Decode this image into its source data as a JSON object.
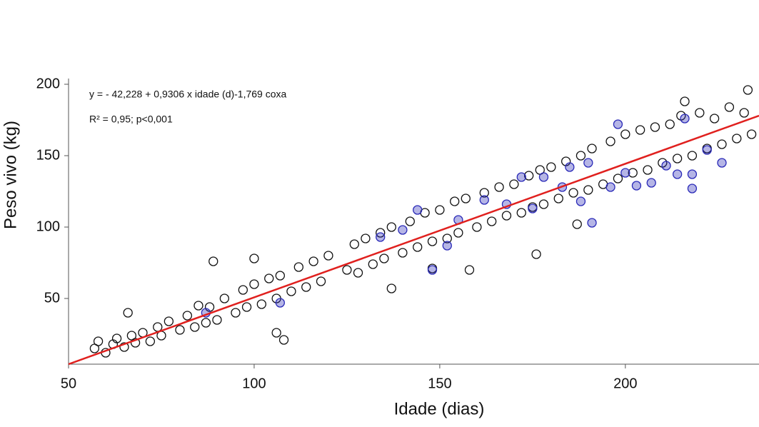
{
  "chart_data": {
    "type": "scatter",
    "annotations": [
      "y = - 42,228 + 0,9306 x idade (d)-1,769 coxa",
      "R² = 0,95; p<0,001"
    ],
    "x_label": "Idade (dias)",
    "y_label": "Peso vivo (kg)",
    "xlim": [
      50,
      236
    ],
    "ylim": [
      4,
      203
    ],
    "xticks": [
      50,
      100,
      150,
      200
    ],
    "yticks": [
      50,
      100,
      150,
      200
    ],
    "series": [
      {
        "color": "#111111",
        "x": [
          57,
          58,
          60,
          62,
          63,
          65,
          67,
          68,
          70,
          72,
          74,
          75,
          77,
          80,
          82,
          84,
          85,
          87,
          88,
          90,
          92,
          95,
          97,
          98,
          100,
          102,
          104,
          106,
          107,
          110,
          112,
          114,
          116,
          118,
          120,
          125,
          127,
          128,
          130,
          132,
          134,
          135,
          137,
          140,
          142,
          144,
          146,
          148,
          150,
          152,
          154,
          155,
          157,
          160,
          162,
          164,
          166,
          168,
          170,
          172,
          174,
          175,
          177,
          178,
          180,
          182,
          184,
          186,
          188,
          190,
          191,
          194,
          196,
          198,
          200,
          202,
          204,
          206,
          208,
          210,
          212,
          214,
          215,
          218,
          220,
          222,
          224,
          226,
          228,
          230,
          232,
          234,
          66,
          89,
          100,
          106,
          108,
          137,
          148,
          158,
          176,
          187,
          233,
          216
        ],
        "values": [
          15,
          20,
          12,
          18,
          22,
          16,
          24,
          19,
          26,
          20,
          30,
          24,
          34,
          28,
          38,
          30,
          45,
          33,
          44,
          35,
          50,
          40,
          56,
          44,
          60,
          46,
          64,
          50,
          66,
          55,
          72,
          58,
          76,
          62,
          80,
          70,
          88,
          68,
          92,
          74,
          96,
          78,
          100,
          82,
          104,
          86,
          110,
          90,
          112,
          92,
          118,
          96,
          120,
          100,
          124,
          104,
          128,
          108,
          130,
          110,
          136,
          114,
          140,
          116,
          142,
          120,
          146,
          124,
          150,
          126,
          155,
          130,
          160,
          134,
          165,
          138,
          168,
          140,
          170,
          145,
          172,
          148,
          178,
          150,
          180,
          155,
          176,
          158,
          184,
          162,
          180,
          165,
          40,
          76,
          78,
          26,
          21,
          57,
          71,
          70,
          81,
          102,
          196,
          188
        ]
      },
      {
        "color": "#2a2ab8",
        "x": [
          87,
          107,
          134,
          140,
          144,
          148,
          152,
          155,
          162,
          168,
          172,
          175,
          178,
          183,
          185,
          188,
          190,
          191,
          196,
          198,
          200,
          203,
          207,
          211,
          214,
          216,
          218,
          222,
          226,
          218
        ],
        "values": [
          40,
          47,
          93,
          98,
          112,
          70,
          87,
          105,
          119,
          116,
          135,
          113,
          135,
          128,
          142,
          118,
          145,
          103,
          128,
          172,
          138,
          129,
          131,
          143,
          137,
          176,
          127,
          154,
          145,
          137
        ]
      }
    ],
    "fit": {
      "color": "#e0201e",
      "x": [
        50,
        236
      ],
      "values": [
        4,
        178
      ]
    }
  }
}
